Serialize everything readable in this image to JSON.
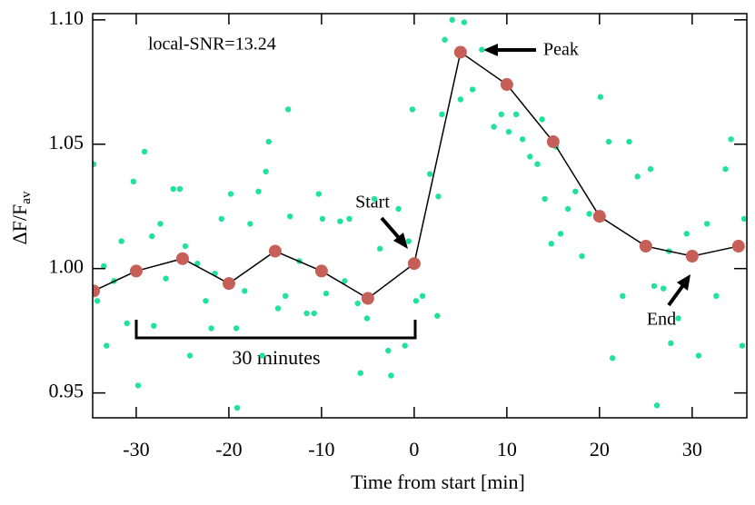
{
  "chart_data": {
    "type": "scatter",
    "xlabel": "Time from start [min]",
    "ylabel": {
      "main": "ΔF/F",
      "sub": "av"
    },
    "xlim": [
      -34.7,
      35.9
    ],
    "ylim": [
      0.94,
      1.1025
    ],
    "xticks": [
      -30,
      -20,
      -10,
      0,
      10,
      20,
      30
    ],
    "yticks": [
      {
        "value": 0.95,
        "label": "0.95"
      },
      {
        "value": 1.0,
        "label": "1.00"
      },
      {
        "value": 1.05,
        "label": "1.05"
      },
      {
        "value": 1.1,
        "label": "1.10"
      }
    ],
    "annotations": {
      "snr": "local-SNR=13.24",
      "peak": "Peak",
      "start": "Start",
      "end": "End",
      "span": "30 minutes"
    },
    "series": [
      {
        "type": "scatter",
        "color": "#1fe39c",
        "x": [
          -34.6,
          -34.2,
          -33.5,
          -33.2,
          -32.4,
          -31.6,
          -31.0,
          -30.3,
          -29.8,
          -29.1,
          -28.3,
          -28.1,
          -27.4,
          -26.8,
          -26.0,
          -25.3,
          -24.7,
          -24.2,
          -23.4,
          -22.5,
          -21.9,
          -21.5,
          -20.8,
          -19.8,
          -19.2,
          -19.1,
          -18.3,
          -17.7,
          -16.8,
          -16.4,
          -16.0,
          -15.7,
          -14.7,
          -13.9,
          -13.6,
          -13.4,
          -12.4,
          -11.6,
          -10.8,
          -10.3,
          -9.9,
          -9.5,
          -8.0,
          -7.5,
          -7.0,
          -6.1,
          -5.8,
          -5.1,
          -4.3,
          -3.7,
          -2.8,
          -2.5,
          -1.7,
          -1.0,
          -0.6,
          -0.2,
          0.2,
          0.9,
          1.7,
          2.5,
          2.6,
          3.0,
          3.3,
          4.1,
          5.0,
          5.4,
          6.3,
          7.3,
          8.6,
          9.4,
          10.2,
          11.0,
          11.7,
          12.5,
          13.3,
          13.8,
          14.1,
          14.8,
          15.3,
          15.8,
          16.6,
          17.4,
          18.1,
          18.9,
          20.1,
          21.0,
          21.4,
          22.5,
          23.2,
          24.1,
          25.5,
          25.9,
          26.2,
          26.9,
          27.5,
          27.7,
          28.5,
          29.4,
          30.7,
          31.6,
          32.6,
          33.6,
          34.2,
          35.4,
          35.6
        ],
        "values": [
          1.042,
          0.987,
          1.001,
          0.969,
          0.995,
          1.011,
          0.978,
          1.035,
          0.953,
          1.047,
          1.013,
          0.977,
          1.018,
          0.996,
          1.032,
          1.032,
          1.009,
          0.965,
          1.002,
          0.987,
          0.976,
          0.998,
          1.02,
          1.03,
          0.976,
          0.944,
          0.991,
          1.018,
          1.031,
          0.965,
          1.039,
          1.051,
          0.984,
          0.989,
          1.064,
          1.021,
          1.003,
          0.982,
          0.982,
          1.03,
          1.02,
          0.99,
          1.019,
          0.995,
          1.02,
          0.986,
          0.958,
          0.98,
          1.028,
          1.008,
          0.967,
          0.957,
          1.024,
          0.969,
          1.011,
          1.064,
          0.987,
          0.989,
          1.038,
          0.981,
          1.029,
          1.062,
          1.092,
          1.1,
          1.068,
          1.099,
          1.072,
          1.088,
          1.057,
          1.062,
          1.055,
          1.062,
          1.052,
          1.045,
          1.042,
          1.06,
          1.028,
          1.01,
          1.049,
          1.014,
          1.024,
          1.031,
          1.005,
          1.022,
          1.069,
          1.051,
          0.964,
          0.989,
          1.051,
          1.037,
          1.04,
          0.993,
          0.945,
          0.992,
          1.007,
          0.97,
          0.98,
          1.014,
          0.965,
          1.018,
          0.989,
          1.04,
          1.052,
          0.969,
          1.02
        ]
      },
      {
        "type": "line",
        "color": "#000000",
        "marker_color": "#c65f58",
        "x": [
          -34.6,
          -30,
          -25,
          -20,
          -15,
          -10,
          -5,
          0,
          5,
          10,
          15,
          20,
          25,
          30,
          35
        ],
        "values": [
          0.991,
          0.999,
          1.004,
          0.994,
          1.007,
          0.999,
          0.988,
          1.002,
          1.087,
          1.074,
          1.051,
          1.021,
          1.009,
          1.005,
          1.009
        ]
      }
    ]
  }
}
